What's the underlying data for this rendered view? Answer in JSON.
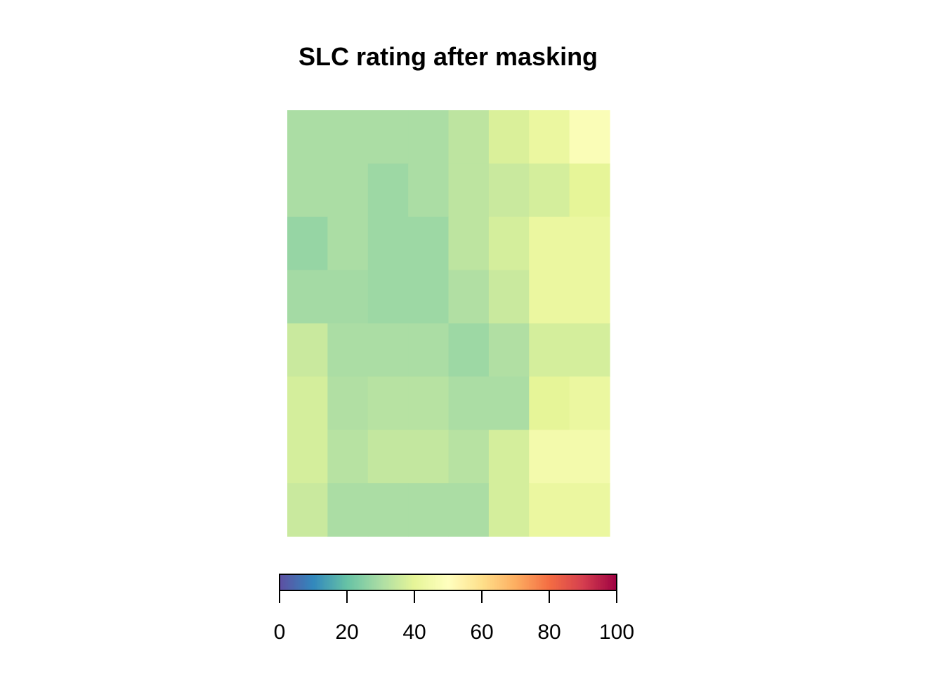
{
  "chart_data": {
    "type": "heatmap",
    "title": "SLC rating after masking",
    "xlabel": "",
    "ylabel": "",
    "grid": false,
    "rows": 8,
    "cols": 8,
    "values": [
      [
        30,
        30,
        30,
        30,
        33,
        38,
        42,
        48
      ],
      [
        30,
        30,
        28,
        30,
        33,
        35,
        37,
        40
      ],
      [
        27,
        30,
        28,
        28,
        33,
        37,
        42,
        42
      ],
      [
        29,
        29,
        28,
        28,
        31,
        35,
        42,
        42
      ],
      [
        35,
        30,
        30,
        30,
        28,
        31,
        37,
        37
      ],
      [
        37,
        31,
        32,
        32,
        30,
        30,
        40,
        42
      ],
      [
        37,
        32,
        34,
        34,
        32,
        37,
        45,
        45
      ],
      [
        35,
        30,
        30,
        30,
        30,
        37,
        42,
        42
      ]
    ],
    "colorbar": {
      "range": [
        0,
        100
      ],
      "ticks": [
        "0",
        "20",
        "40",
        "60",
        "80",
        "100"
      ],
      "tick_values": [
        0,
        20,
        40,
        60,
        80,
        100
      ],
      "palette": [
        "#5E4FA2",
        "#3288BD",
        "#66C2A5",
        "#ABDDA4",
        "#E6F598",
        "#FFFFBF",
        "#FEE08B",
        "#FDAE61",
        "#F46D43",
        "#D53E4F",
        "#9E0142"
      ]
    }
  }
}
